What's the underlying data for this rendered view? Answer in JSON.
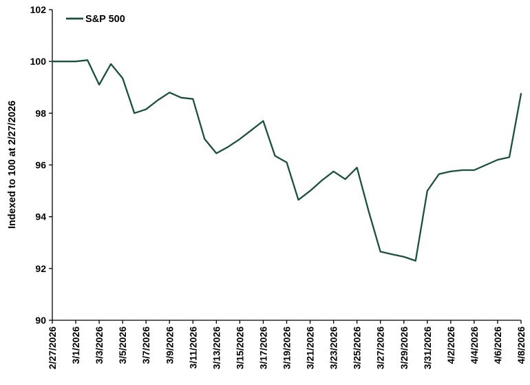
{
  "chart_data": {
    "type": "line",
    "legend": "S&P 500",
    "ylabel": "Indexed to 100 at 2/27/2026",
    "line_color": "#1a4e3d",
    "axis_color": "#000000",
    "ylim": [
      90,
      102
    ],
    "yticks": [
      90,
      92,
      94,
      96,
      98,
      100,
      102
    ],
    "xtick_every": 2,
    "grid": false,
    "legend_position": "top-left",
    "x": [
      "2/27/2026",
      "2/28/2026",
      "3/1/2026",
      "3/2/2026",
      "3/3/2026",
      "3/4/2026",
      "3/5/2026",
      "3/6/2026",
      "3/7/2026",
      "3/8/2026",
      "3/9/2026",
      "3/10/2026",
      "3/11/2026",
      "3/12/2026",
      "3/13/2026",
      "3/14/2026",
      "3/15/2026",
      "3/16/2026",
      "3/17/2026",
      "3/18/2026",
      "3/19/2026",
      "3/20/2026",
      "3/21/2026",
      "3/22/2026",
      "3/23/2026",
      "3/24/2026",
      "3/25/2026",
      "3/26/2026",
      "3/27/2026",
      "3/28/2026",
      "3/29/2026",
      "3/30/2026",
      "3/31/2026",
      "4/1/2026",
      "4/2/2026",
      "4/3/2026",
      "4/4/2026",
      "4/5/2026",
      "4/6/2026",
      "4/7/2026",
      "4/8/2026"
    ],
    "values": [
      100.0,
      100.0,
      100.0,
      100.05,
      99.1,
      99.9,
      99.35,
      98.0,
      98.15,
      98.5,
      98.8,
      98.6,
      98.55,
      97.0,
      96.45,
      96.7,
      97.0,
      97.35,
      97.7,
      96.35,
      96.1,
      94.65,
      95.0,
      95.4,
      95.75,
      95.45,
      95.9,
      94.2,
      92.65,
      92.55,
      92.45,
      92.3,
      95.0,
      95.65,
      95.75,
      95.8,
      95.8,
      96.0,
      96.2,
      96.3,
      98.75
    ]
  }
}
